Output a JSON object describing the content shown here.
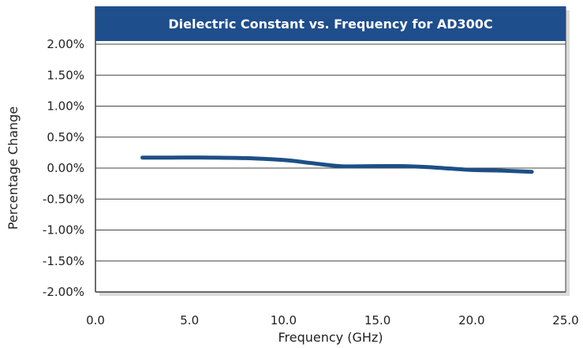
{
  "colors": {
    "title_bar": "#1f4e8c",
    "series_line": "#1d4f86",
    "gridline": "#444444",
    "plot_border": "#3c3c3c",
    "shadow": "#bdbdbd",
    "background": "#ffffff"
  },
  "chart_data": {
    "type": "line",
    "title": "Dielectric Constant vs. Frequency for AD300C",
    "xlabel": "Frequency (GHz)",
    "ylabel": "Percentage Change",
    "xlim": [
      0,
      25
    ],
    "ylim": [
      -2.0,
      2.0
    ],
    "x_ticks": [
      "0.0",
      "5.0",
      "10.0",
      "15.0",
      "20.0",
      "25.0"
    ],
    "y_ticks": [
      "2.00%",
      "1.50%",
      "1.00%",
      "0.50%",
      "0.00%",
      "-0.50%",
      "-1.00%",
      "-1.50%",
      "-2.00%"
    ],
    "grid": true,
    "legend": "none",
    "series": [
      {
        "x": [
          2.5,
          4,
          6,
          8,
          10,
          11.5,
          13,
          14.5,
          16.5,
          18,
          20,
          21.5,
          23.2
        ],
        "y": [
          0.17,
          0.17,
          0.17,
          0.16,
          0.13,
          0.08,
          0.03,
          0.03,
          0.03,
          0.01,
          -0.03,
          -0.04,
          -0.06
        ]
      }
    ]
  }
}
